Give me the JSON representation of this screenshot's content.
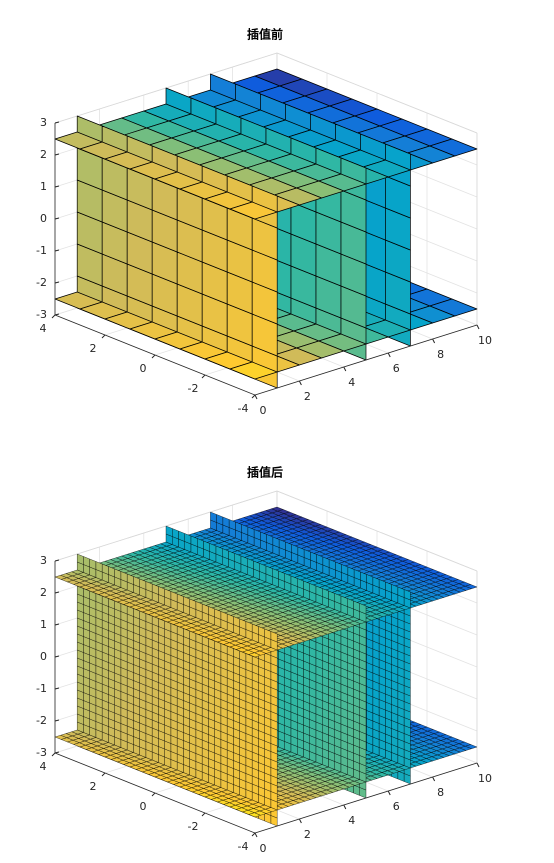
{
  "chart_data": [
    {
      "type": "slice",
      "title": "插值前",
      "xlim": [
        0,
        10
      ],
      "ylim": [
        -4,
        4
      ],
      "zlim": [
        -3,
        3
      ],
      "xticks": [
        0,
        2,
        4,
        6,
        8,
        10
      ],
      "yticks": [
        -4,
        -2,
        0,
        2,
        4
      ],
      "zticks": [
        -3,
        -2,
        -1,
        0,
        1,
        2,
        3
      ],
      "x_slices": [
        1,
        5,
        7
      ],
      "z_slices": [
        -2.5,
        2.5
      ],
      "mesh_step": 1,
      "grid": true,
      "colormap": [
        "#352a87",
        "#0f5cdd",
        "#1481d6",
        "#06a4ca",
        "#2eb7a4",
        "#87bf77",
        "#d1bb59",
        "#fec832",
        "#f9fb0e"
      ],
      "edge_color": "#000000"
    },
    {
      "type": "slice",
      "title": "插值后",
      "xlim": [
        0,
        10
      ],
      "ylim": [
        -4,
        4
      ],
      "zlim": [
        -3,
        3
      ],
      "xticks": [
        0,
        2,
        4,
        6,
        8,
        10
      ],
      "yticks": [
        -4,
        -2,
        0,
        2,
        4
      ],
      "zticks": [
        -3,
        -2,
        -1,
        0,
        1,
        2,
        3
      ],
      "x_slices": [
        1,
        5,
        7
      ],
      "z_slices": [
        -2.5,
        2.5
      ],
      "mesh_step": 0.25,
      "grid": true,
      "colormap": [
        "#352a87",
        "#0f5cdd",
        "#1481d6",
        "#06a4ca",
        "#2eb7a4",
        "#87bf77",
        "#d1bb59",
        "#fec832",
        "#f9fb0e"
      ],
      "edge_color": "#000000"
    }
  ]
}
